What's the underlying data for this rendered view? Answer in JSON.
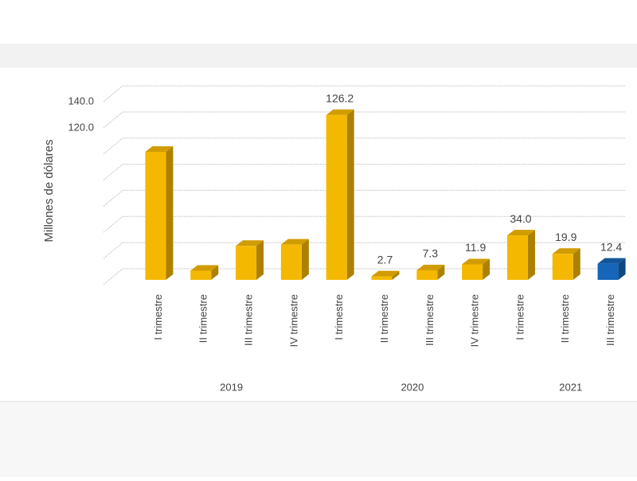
{
  "chart_data": {
    "type": "bar3d",
    "y_label": "Millones de dólares",
    "ylim": [
      0,
      140
    ],
    "yticks": [
      {
        "value": 0,
        "label": null
      },
      {
        "value": 20,
        "label": null
      },
      {
        "value": 40,
        "label": null
      },
      {
        "value": 60,
        "label": null
      },
      {
        "value": 80,
        "label": null
      },
      {
        "value": 100,
        "label": null
      },
      {
        "value": 120,
        "label": "120.0"
      },
      {
        "value": 140,
        "label": "140.0"
      }
    ],
    "grid": true,
    "groups": [
      {
        "name": "2019",
        "categories": [
          "I trimestre",
          "II trimestre",
          "III trimestre",
          "IV  trimestre"
        ],
        "values": [
          98,
          7,
          26,
          27
        ],
        "value_labels": [
          null,
          null,
          null,
          null
        ],
        "colors": [
          "#f5b800",
          "#f5b800",
          "#f5b800",
          "#f5b800"
        ]
      },
      {
        "name": "2020",
        "categories": [
          "I trimestre",
          "II trimestre",
          "III trimestre",
          "IV  trimestre"
        ],
        "values": [
          126.2,
          2.7,
          7.3,
          11.9
        ],
        "value_labels": [
          "126.2",
          "2.7",
          "7.3",
          "11.9"
        ],
        "colors": [
          "#f5b800",
          "#f5b800",
          "#f5b800",
          "#f5b800"
        ]
      },
      {
        "name": "2021",
        "categories": [
          "I trimestre",
          "II trimestre",
          "III trimestre"
        ],
        "values": [
          34,
          19.9,
          12.4
        ],
        "value_labels": [
          "34.0",
          "19.9",
          "12.4"
        ],
        "colors": [
          "#f5b800",
          "#f5b800",
          "#1565b8"
        ]
      }
    ]
  }
}
